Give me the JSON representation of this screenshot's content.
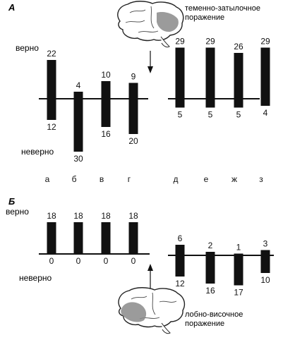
{
  "colors": {
    "bar": "#111111",
    "axis": "#111111",
    "text": "#111111",
    "lesion": "#8a8a8a",
    "brain_outline": "#222222"
  },
  "icons": [
    "brain-icon",
    "arrow-down-icon",
    "arrow-up-icon"
  ],
  "chart_data": [
    {
      "type": "bar",
      "panel_label": "А",
      "title": "",
      "xlabel": "",
      "ylabel": "",
      "legend": "none",
      "grid": false,
      "up_label": "верно",
      "down_label": "неверно",
      "lesion_caption": [
        "теменно-затылочное",
        "поражение"
      ],
      "categories": [
        "а",
        "б",
        "в",
        "г",
        "д",
        "е",
        "ж",
        "з"
      ],
      "series": [
        {
          "values": [
            22,
            4,
            10,
            9,
            29,
            29,
            26,
            29
          ]
        },
        {
          "values": [
            12,
            30,
            16,
            20,
            5,
            5,
            5,
            4
          ]
        }
      ]
    },
    {
      "type": "bar",
      "panel_label": "Б",
      "title": "",
      "xlabel": "",
      "ylabel": "",
      "legend": "none",
      "grid": false,
      "up_label": "верно",
      "down_label": "неверно",
      "lesion_caption": [
        "лобно-височное",
        "поражение"
      ],
      "categories": [
        "",
        "",
        "",
        "",
        "",
        "",
        "",
        ""
      ],
      "series": [
        {
          "values": [
            18,
            18,
            18,
            18,
            6,
            2,
            1,
            3
          ]
        },
        {
          "values": [
            0,
            0,
            0,
            0,
            12,
            16,
            17,
            10
          ]
        }
      ]
    }
  ]
}
